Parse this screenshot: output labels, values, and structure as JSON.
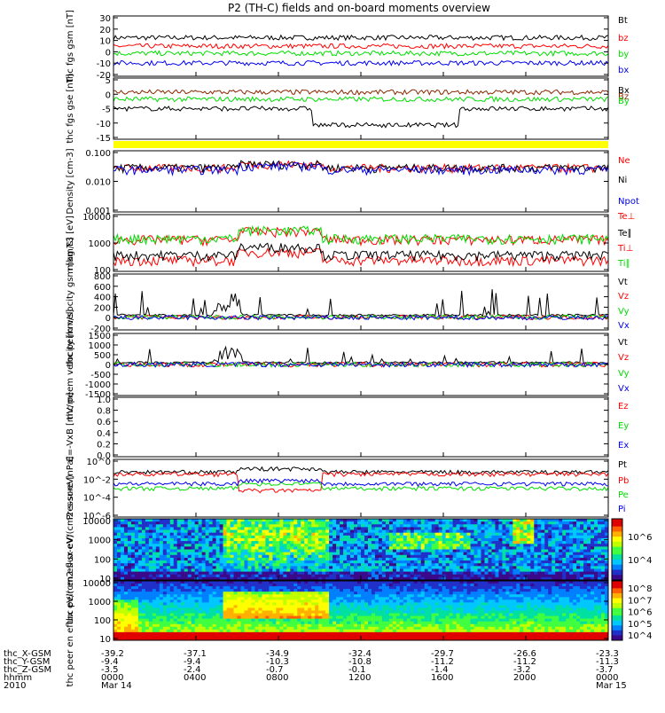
{
  "title": "P2 (TH-C) fields and on-board moments overview",
  "colors": {
    "black": "#000000",
    "red": "#ff0000",
    "green": "#00dd00",
    "blue": "#0000ee",
    "yellow": "#ffff00",
    "brown": "#8b2500"
  },
  "chart_data": [
    {
      "type": "line",
      "panel": "fgs-gsm",
      "ylabel": "thc fgs gsm [nT]",
      "ylim": [
        -20,
        30
      ],
      "yticks": [
        30,
        20,
        10,
        0,
        -10,
        -20
      ],
      "series": [
        {
          "name": "Bt",
          "color": "black",
          "level": 12
        },
        {
          "name": "bz",
          "color": "red",
          "level": 5
        },
        {
          "name": "by",
          "color": "green",
          "level": -1
        },
        {
          "name": "bx",
          "color": "blue",
          "level": -9
        }
      ]
    },
    {
      "type": "line",
      "panel": "fgs-gse",
      "ylabel": "thc fgs gse [nT]",
      "ylim": [
        -18,
        8
      ],
      "yticks": [
        5,
        0,
        -5,
        -10,
        -15
      ],
      "series": [
        {
          "name": "Bx",
          "color": "black",
          "level": -5
        },
        {
          "name": "Bz",
          "color": "brown",
          "level": 2
        },
        {
          "name": "By",
          "color": "green",
          "level": -1
        }
      ]
    },
    {
      "type": "line",
      "panel": "density",
      "ylabel": "Density [cm-3]",
      "log": true,
      "ylim": [
        0.001,
        1
      ],
      "yticks": [
        "0.100",
        "0.010",
        "0.001"
      ],
      "series": [
        {
          "name": "Ne",
          "color": "red",
          "level": 0.15
        },
        {
          "name": "Ni",
          "color": "black",
          "level": 0.15
        },
        {
          "name": "Npot",
          "color": "blue",
          "level": 0.12
        }
      ]
    },
    {
      "type": "line",
      "panel": "temperature",
      "ylabel": "mag T3 [eV]",
      "log": true,
      "ylim": [
        40,
        10000
      ],
      "yticks": [
        "10000",
        "1000",
        "100"
      ],
      "series": [
        {
          "name": "Te⊥",
          "color": "red",
          "level": 120
        },
        {
          "name": "Te∥",
          "color": "black",
          "level": 200
        },
        {
          "name": "Ti⊥",
          "color": "red",
          "level": 900
        },
        {
          "name": "Ti∥",
          "color": "green",
          "level": 1000
        }
      ]
    },
    {
      "type": "line",
      "panel": "peim-velocity",
      "ylabel": "thc peim velocity gsm [km/s]",
      "ylim": [
        -250,
        850
      ],
      "yticks": [
        800,
        600,
        400,
        200,
        0,
        -200
      ],
      "series": [
        {
          "name": "Vt",
          "color": "black",
          "level": 40
        },
        {
          "name": "Vz",
          "color": "red",
          "level": 0
        },
        {
          "name": "Vy",
          "color": "green",
          "level": 0
        },
        {
          "name": "Vx",
          "color": "blue",
          "level": -10
        }
      ]
    },
    {
      "type": "line",
      "panel": "peem-velocity",
      "ylabel": "thc peem velocity [km/s]",
      "ylim": [
        -1600,
        1600
      ],
      "yticks": [
        1500,
        1000,
        500,
        0,
        -500,
        -1000,
        -1500
      ],
      "series": [
        {
          "name": "Vt",
          "color": "black",
          "level": 100
        },
        {
          "name": "Vz",
          "color": "red",
          "level": 0
        },
        {
          "name": "Vy",
          "color": "green",
          "level": 0
        },
        {
          "name": "Vx",
          "color": "blue",
          "level": 0
        }
      ]
    },
    {
      "type": "line",
      "panel": "exb",
      "ylabel": "E=-VxB [mV/m]",
      "ylim": [
        0,
        1
      ],
      "yticks": [
        "1.0",
        "0.8",
        "0.6",
        "0.4",
        "0.2",
        "0.0"
      ],
      "series": [
        {
          "name": "Ez",
          "color": "red"
        },
        {
          "name": "Ey",
          "color": "green"
        },
        {
          "name": "Ex",
          "color": "blue"
        }
      ]
    },
    {
      "type": "line",
      "panel": "pressure",
      "ylabel": "Pressure [nPa]",
      "log": true,
      "ylim": [
        1e-06,
        1
      ],
      "yticks": [
        "10^0",
        "10^-2",
        "10^-4",
        "10^-6"
      ],
      "series": [
        {
          "name": "Pt",
          "color": "black",
          "level": 0.05
        },
        {
          "name": "Pb",
          "color": "red",
          "level": 0.03
        },
        {
          "name": "Pe",
          "color": "green",
          "level": 0.001
        },
        {
          "name": "Pi",
          "color": "blue",
          "level": 0.003
        }
      ]
    },
    {
      "type": "heatmap",
      "panel": "peir-spectrogram",
      "ylabel": "thc peir en eflux eV/(cm2-s-sr-eV)",
      "log": true,
      "ylim": [
        10,
        20000
      ],
      "yticks": [
        "10000",
        "1000",
        "100",
        "10"
      ],
      "colorbar_ticks": [
        "10^6",
        "10^4"
      ]
    },
    {
      "type": "heatmap",
      "panel": "peer-spectrogram",
      "ylabel": "thc peer en eflux eV/(cm2-s-sr-eV)",
      "log": true,
      "ylim": [
        10,
        20000
      ],
      "yticks": [
        "10000",
        "1000",
        "100",
        "10"
      ],
      "colorbar_ticks": [
        "10^8",
        "10^7",
        "10^6",
        "10^5",
        "10^4"
      ]
    }
  ],
  "xaxis": {
    "row_labels": [
      "thc_X-GSM",
      "thc_Y-GSM",
      "thc_Z-GSM",
      "hhmm",
      "2010"
    ],
    "ticks": [
      {
        "x": "-39.2",
        "y": "-9.4",
        "z": "-3.5",
        "hhmm": "0000",
        "date": "Mar 14"
      },
      {
        "x": "-37.1",
        "y": "-9.4",
        "z": "-2.4",
        "hhmm": "0400",
        "date": ""
      },
      {
        "x": "-34.9",
        "y": "-10.3",
        "z": "-0.7",
        "hhmm": "0800",
        "date": ""
      },
      {
        "x": "-32.4",
        "y": "-10.8",
        "z": "-0.1",
        "hhmm": "1200",
        "date": ""
      },
      {
        "x": "-29.7",
        "y": "-11.2",
        "z": "-1.4",
        "hhmm": "1600",
        "date": ""
      },
      {
        "x": "-26.6",
        "y": "-11.2",
        "z": "-3.2",
        "hhmm": "2000",
        "date": ""
      },
      {
        "x": "-23.3",
        "y": "-11.3",
        "z": "-3.7",
        "hhmm": "0000",
        "date": "Mar 15"
      }
    ]
  }
}
